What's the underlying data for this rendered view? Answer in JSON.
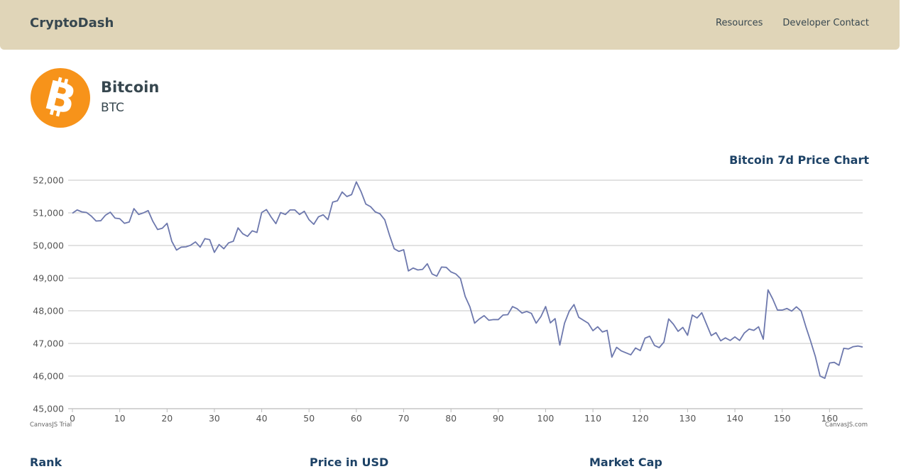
{
  "navbar": {
    "brand": "CryptoDash",
    "links": [
      "Resources",
      "Developer Contact"
    ]
  },
  "coin": {
    "name": "Bitcoin",
    "symbol": "BTC",
    "logo_icon": "bitcoin-icon",
    "logo_color": "#f7931a"
  },
  "colors": {
    "navbar_bg": "#e0d5b8",
    "line": "#6d78ad",
    "title": "#1d4266"
  },
  "chart_data": {
    "type": "line",
    "title": "Bitcoin 7d Price Chart",
    "xlabel": "",
    "ylabel": "",
    "xlim": [
      0,
      167
    ],
    "ylim": [
      45000,
      52000
    ],
    "x_ticks": [
      "0",
      "10",
      "20",
      "30",
      "40",
      "50",
      "60",
      "70",
      "80",
      "90",
      "100",
      "110",
      "120",
      "130",
      "140",
      "150",
      "160"
    ],
    "y_ticks": [
      "45,000",
      "46,000",
      "47,000",
      "48,000",
      "49,000",
      "50,000",
      "51,000",
      "52,000"
    ],
    "grid": true,
    "legend": "none",
    "series": [
      {
        "values": [
          50990,
          51090,
          51030,
          51010,
          50900,
          50750,
          50760,
          50930,
          51020,
          50840,
          50820,
          50680,
          50720,
          51130,
          50950,
          51000,
          51070,
          50740,
          50490,
          50530,
          50680,
          50130,
          49860,
          49950,
          49960,
          50010,
          50110,
          49950,
          50210,
          50180,
          49790,
          50030,
          49900,
          50080,
          50130,
          50540,
          50360,
          50280,
          50450,
          50400,
          51010,
          51100,
          50870,
          50670,
          51010,
          50950,
          51090,
          51090,
          50950,
          51050,
          50790,
          50650,
          50880,
          50940,
          50790,
          51330,
          51370,
          51640,
          51500,
          51560,
          51950,
          51650,
          51270,
          51190,
          51030,
          50970,
          50790,
          50320,
          49900,
          49820,
          49870,
          49220,
          49310,
          49250,
          49270,
          49440,
          49130,
          49060,
          49340,
          49330,
          49190,
          49130,
          48990,
          48440,
          48120,
          47620,
          47750,
          47850,
          47710,
          47730,
          47730,
          47870,
          47880,
          48130,
          48060,
          47930,
          47980,
          47920,
          47620,
          47820,
          48130,
          47630,
          47760,
          46950,
          47620,
          47990,
          48190,
          47800,
          47710,
          47620,
          47390,
          47510,
          47350,
          47400,
          46580,
          46880,
          46770,
          46710,
          46650,
          46860,
          46780,
          47160,
          47220,
          46940,
          46870,
          47040,
          47750,
          47590,
          47370,
          47490,
          47250,
          47870,
          47780,
          47940,
          47590,
          47240,
          47330,
          47080,
          47170,
          47090,
          47200,
          47090,
          47320,
          47440,
          47400,
          47510,
          47130,
          48640,
          48360,
          48020,
          48020,
          48070,
          47990,
          48120,
          47990,
          47510,
          47070,
          46600,
          46000,
          45930,
          46400,
          46420,
          46330,
          46850,
          46830,
          46900,
          46920,
          46890
        ]
      }
    ],
    "credits": [
      "CanvasJS Trial",
      "CanvasJS.com"
    ]
  },
  "sections": {
    "headers": [
      "Rank",
      "Price in USD",
      "Market Cap"
    ]
  }
}
